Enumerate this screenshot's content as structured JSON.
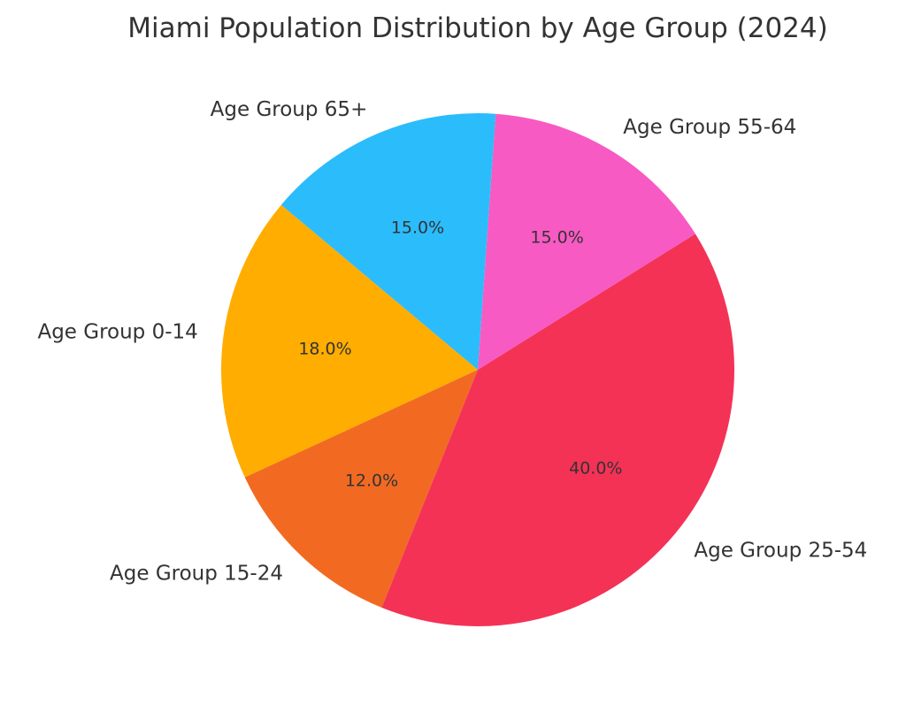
{
  "chart_data": {
    "type": "pie",
    "title": "Miami Population Distribution by Age Group (2024)",
    "categories": [
      "Age Group 0-14",
      "Age Group 15-24",
      "Age Group 25-54",
      "Age Group 55-64",
      "Age Group 65+"
    ],
    "values": [
      18.0,
      12.0,
      40.0,
      15.0,
      15.0
    ],
    "value_labels": [
      "18.0%",
      "12.0%",
      "40.0%",
      "15.0%",
      "15.0%"
    ],
    "colors": [
      "#FFAD00",
      "#F26A22",
      "#F43256",
      "#F85AC3",
      "#2BBCFC"
    ],
    "start_angle_deg": 140,
    "direction": "counterclockwise"
  }
}
